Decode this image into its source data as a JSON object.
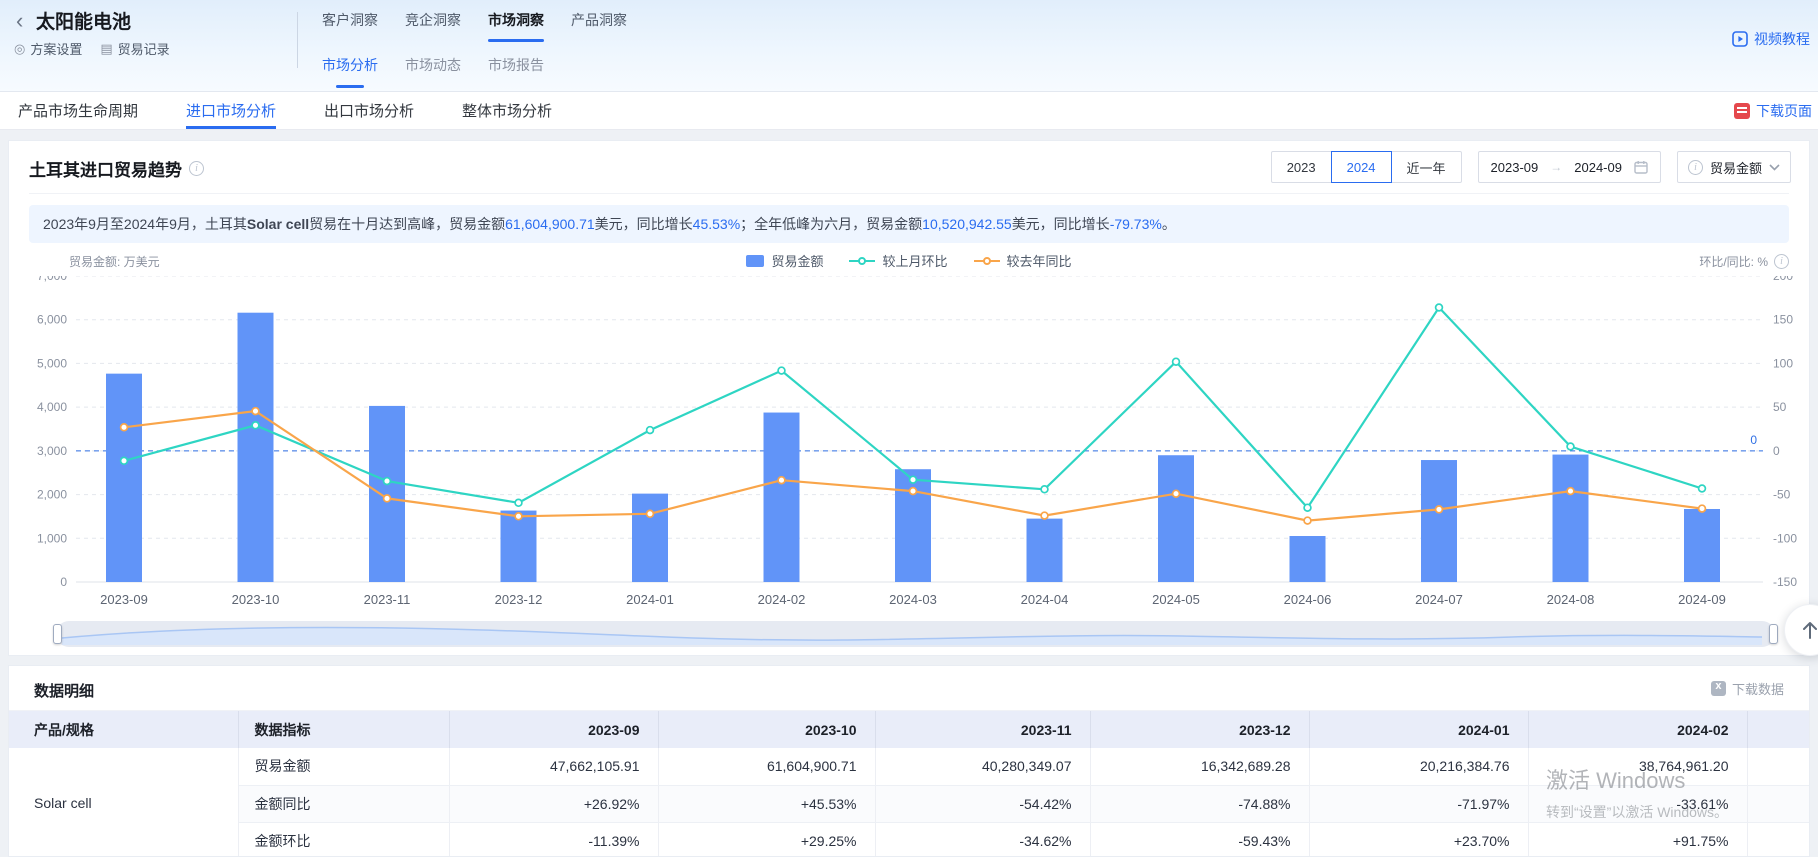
{
  "header": {
    "back_icon": "‹",
    "title": "太阳能电池",
    "scheme_settings": "方案设置",
    "trade_records": "贸易记录",
    "top_tabs": [
      {
        "label": "客户洞察",
        "active": false
      },
      {
        "label": "竞企洞察",
        "active": false
      },
      {
        "label": "市场洞察",
        "active": true
      },
      {
        "label": "产品洞察",
        "active": false
      }
    ],
    "sub_tabs": [
      {
        "label": "市场分析",
        "active": true
      },
      {
        "label": "市场动态",
        "active": false
      },
      {
        "label": "市场报告",
        "active": false
      }
    ],
    "video_tutorial": "视频教程"
  },
  "nav": {
    "items": [
      {
        "label": "产品市场生命周期",
        "active": false
      },
      {
        "label": "进口市场分析",
        "active": true
      },
      {
        "label": "出口市场分析",
        "active": false
      },
      {
        "label": "整体市场分析",
        "active": false
      }
    ],
    "download_page": "下载页面"
  },
  "chart_section": {
    "title": "土耳其进口贸易趋势",
    "year_buttons": [
      {
        "label": "2023",
        "active": false
      },
      {
        "label": "2024",
        "active": true
      },
      {
        "label": "近一年",
        "active": false
      }
    ],
    "date_from": "2023-09",
    "date_to": "2024-09",
    "metric_dropdown": "贸易金额",
    "summary_segments": [
      {
        "t": "2023年9月至2024年9月，土耳其"
      },
      {
        "t": "Solar cell",
        "b": true
      },
      {
        "t": "贸易在十月达到高峰，贸易金额"
      },
      {
        "t": "61,604,900.71",
        "c": "blue"
      },
      {
        "t": "美元，同比增长"
      },
      {
        "t": "45.53%",
        "c": "blue"
      },
      {
        "t": "；全年低峰为六月，贸易金额"
      },
      {
        "t": "10,520,942.55",
        "c": "blue"
      },
      {
        "t": "美元，同比增长"
      },
      {
        "t": "-79.73%",
        "c": "blue"
      },
      {
        "t": "。"
      }
    ],
    "left_axis_title": "贸易金额: 万美元",
    "right_axis_title": "环比/同比: %",
    "zero_label": "0"
  },
  "chart_data": {
    "type": "bar",
    "note": "bar values in 万美元 on left axis; line values in % on right axis",
    "categories": [
      "2023-09",
      "2023-10",
      "2023-11",
      "2023-12",
      "2024-01",
      "2024-02",
      "2024-03",
      "2024-04",
      "2024-05",
      "2024-06",
      "2024-07",
      "2024-08",
      "2024-09"
    ],
    "series": [
      {
        "name": "贸易金额",
        "type": "bar",
        "axis": "left",
        "color": "#6194f8",
        "values": [
          4766.21,
          6160.49,
          4028.03,
          1634.27,
          2021.64,
          3876.5,
          2580,
          1450,
          2900,
          1052.09,
          2790,
          2915,
          1670
        ]
      },
      {
        "name": "较上月环比",
        "type": "line",
        "axis": "right",
        "color": "#2ed5c3",
        "values": [
          -11.39,
          29.25,
          -34.62,
          -59.43,
          23.7,
          91.75,
          -33,
          -44,
          102,
          -65,
          164,
          5,
          -43
        ]
      },
      {
        "name": "较去年同比",
        "type": "line",
        "axis": "right",
        "color": "#f9a54a",
        "values": [
          26.92,
          45.53,
          -54.42,
          -74.88,
          -71.97,
          -33.61,
          -46,
          -74,
          -49,
          -79.73,
          -67,
          -46,
          -66
        ]
      }
    ],
    "left_axis": {
      "min": 0,
      "max": 7000,
      "ticks": [
        "7,000",
        "6,000",
        "5,000",
        "4,000",
        "3,000",
        "2,000",
        "1,000",
        "0"
      ]
    },
    "right_axis": {
      "min": -150,
      "max": 200,
      "ticks": [
        "200",
        "150",
        "100",
        "50",
        "0",
        "-50",
        "-100",
        "-150"
      ]
    },
    "zero_line_right_axis": 0,
    "legend_position": "top-center",
    "grid": true
  },
  "table": {
    "section_title": "数据明细",
    "download_label": "下载数据",
    "columns": [
      "产品/规格",
      "数据指标",
      "2023-09",
      "2023-10",
      "2023-11",
      "2023-12",
      "2024-01",
      "2024-02"
    ],
    "product": "Solar cell",
    "rows": [
      {
        "label": "贸易金额",
        "kind": "amount",
        "values": [
          "47,662,105.91",
          "61,604,900.71",
          "40,280,349.07",
          "16,342,689.28",
          "20,216,384.76",
          "38,764,961.20"
        ]
      },
      {
        "label": "金额同比",
        "kind": "percent",
        "values": [
          "+26.92%",
          "+45.53%",
          "-54.42%",
          "-74.88%",
          "-71.97%",
          "-33.61%"
        ]
      },
      {
        "label": "金额环比",
        "kind": "percent",
        "values": [
          "-11.39%",
          "+29.25%",
          "-34.62%",
          "-59.43%",
          "+23.70%",
          "+91.75%"
        ]
      }
    ]
  },
  "watermark": {
    "line1": "激活 Windows",
    "line2": "转到“设置”以激活 Windows。"
  },
  "colors": {
    "accent": "#2a6cf0",
    "bar": "#6194f8",
    "mom_line": "#2ed5c3",
    "yoy_line": "#f9a54a",
    "positive": "#e6494f",
    "negative": "#27b376",
    "zero_line": "#2f6fe4"
  }
}
